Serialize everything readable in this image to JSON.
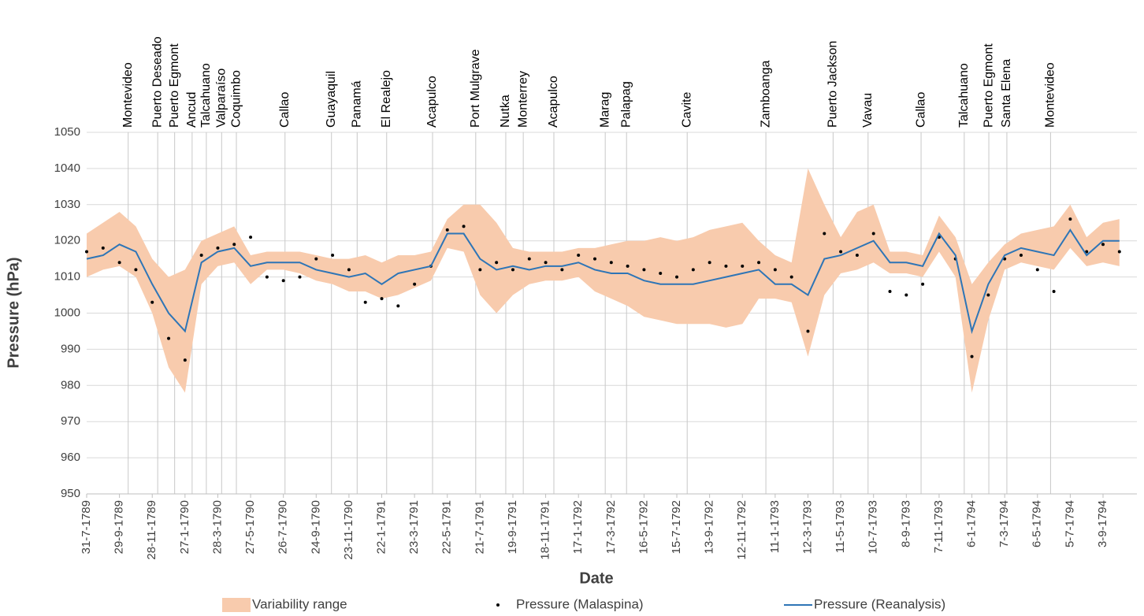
{
  "chart_data": {
    "type": "line",
    "y_label": "Pressure (hPa)",
    "x_label": "Date",
    "ylim": [
      950,
      1050
    ],
    "yticks": [
      950,
      960,
      970,
      980,
      990,
      1000,
      1010,
      1020,
      1030,
      1040,
      1050
    ],
    "grid": true,
    "legend": "bottom",
    "xlim": [
      "31-7-1789",
      "4-11-1794"
    ],
    "xticks": [
      "31-7-1789",
      "29-9-1789",
      "28-11-1789",
      "27-1-1790",
      "28-3-1790",
      "27-5-1790",
      "26-7-1790",
      "24-9-1790",
      "23-11-1790",
      "22-1-1791",
      "23-3-1791",
      "22-5-1791",
      "21-7-1791",
      "19-9-1791",
      "18-11-1791",
      "17-1-1792",
      "17-3-1792",
      "16-5-1792",
      "15-7-1792",
      "13-9-1792",
      "12-11-1792",
      "11-1-1793",
      "12-3-1793",
      "11-5-1793",
      "10-7-1793",
      "8-9-1793",
      "7-11-1793",
      "6-1-1794",
      "7-3-1794",
      "6-5-1794",
      "5-7-1794",
      "3-9-1794"
    ],
    "x": [
      "31-7-1789",
      "30-8-1789",
      "29-9-1789",
      "29-10-1789",
      "28-11-1789",
      "28-12-1789",
      "27-1-1790",
      "26-2-1790",
      "28-3-1790",
      "27-4-1790",
      "27-5-1790",
      "26-6-1790",
      "26-7-1790",
      "25-8-1790",
      "24-9-1790",
      "24-10-1790",
      "23-11-1790",
      "23-12-1790",
      "22-1-1791",
      "21-2-1791",
      "23-3-1791",
      "22-4-1791",
      "22-5-1791",
      "21-6-1791",
      "21-7-1791",
      "20-8-1791",
      "19-9-1791",
      "19-10-1791",
      "18-11-1791",
      "18-12-1791",
      "17-1-1792",
      "16-2-1792",
      "17-3-1792",
      "16-4-1792",
      "16-5-1792",
      "15-6-1792",
      "15-7-1792",
      "14-8-1792",
      "13-9-1792",
      "13-10-1792",
      "12-11-1792",
      "12-12-1792",
      "11-1-1793",
      "10-2-1793",
      "12-3-1793",
      "11-4-1793",
      "11-5-1793",
      "10-6-1793",
      "10-7-1793",
      "9-8-1793",
      "8-9-1793",
      "8-10-1793",
      "7-11-1793",
      "7-12-1793",
      "6-1-1794",
      "5-2-1794",
      "7-3-1794",
      "6-4-1794",
      "6-5-1794",
      "5-6-1794",
      "5-7-1794",
      "4-8-1794",
      "3-9-1794",
      "3-10-1794"
    ],
    "series": [
      {
        "name": "Variability range",
        "color": "#f8cbad",
        "type": "area",
        "low": [
          1010,
          1012,
          1013,
          1010,
          1000,
          985,
          978,
          1008,
          1013,
          1014,
          1008,
          1012,
          1012,
          1011,
          1009,
          1008,
          1006,
          1006,
          1004,
          1005,
          1007,
          1009,
          1018,
          1017,
          1005,
          1000,
          1005,
          1008,
          1009,
          1009,
          1010,
          1006,
          1004,
          1002,
          999,
          998,
          997,
          997,
          997,
          996,
          997,
          1004,
          1004,
          1003,
          988,
          1005,
          1011,
          1012,
          1014,
          1011,
          1011,
          1010,
          1017,
          1010,
          978,
          998,
          1012,
          1014,
          1013,
          1012,
          1018,
          1013,
          1014,
          1013
        ],
        "high": [
          1022,
          1025,
          1028,
          1024,
          1015,
          1010,
          1012,
          1020,
          1022,
          1024,
          1016,
          1017,
          1017,
          1017,
          1016,
          1015,
          1015,
          1016,
          1014,
          1016,
          1016,
          1017,
          1026,
          1030,
          1030,
          1025,
          1018,
          1017,
          1017,
          1017,
          1018,
          1018,
          1019,
          1020,
          1020,
          1021,
          1020,
          1021,
          1023,
          1024,
          1025,
          1020,
          1016,
          1014,
          1040,
          1030,
          1021,
          1028,
          1030,
          1017,
          1017,
          1016,
          1027,
          1021,
          1008,
          1014,
          1019,
          1022,
          1023,
          1024,
          1030,
          1021,
          1025,
          1026
        ]
      },
      {
        "name": "Pressure (Malaspina)",
        "color": "#000000",
        "type": "scatter",
        "values": [
          1017,
          1018,
          1014,
          1012,
          1003,
          993,
          987,
          1016,
          1018,
          1019,
          1021,
          1010,
          1009,
          1010,
          1015,
          1016,
          1012,
          1003,
          1004,
          1002,
          1008,
          1013,
          1023,
          1024,
          1012,
          1014,
          1012,
          1015,
          1014,
          1012,
          1016,
          1015,
          1014,
          1013,
          1012,
          1011,
          1010,
          1012,
          1014,
          1013,
          1013,
          1014,
          1012,
          1010,
          995,
          1022,
          1017,
          1016,
          1022,
          1006,
          1005,
          1008,
          1021,
          1015,
          988,
          1005,
          1015,
          1016,
          1012,
          1006,
          1026,
          1017,
          1019,
          1017
        ]
      },
      {
        "name": "Pressure (Reanalysis)",
        "color": "#2e75b6",
        "type": "line",
        "values": [
          1015,
          1016,
          1019,
          1017,
          1008,
          1000,
          995,
          1014,
          1017,
          1018,
          1013,
          1014,
          1014,
          1014,
          1012,
          1011,
          1010,
          1011,
          1008,
          1011,
          1012,
          1013,
          1022,
          1022,
          1015,
          1012,
          1013,
          1012,
          1013,
          1013,
          1014,
          1012,
          1011,
          1011,
          1009,
          1008,
          1008,
          1008,
          1009,
          1010,
          1011,
          1012,
          1008,
          1008,
          1005,
          1015,
          1016,
          1018,
          1020,
          1014,
          1014,
          1013,
          1022,
          1016,
          995,
          1008,
          1016,
          1018,
          1017,
          1016,
          1023,
          1016,
          1020,
          1020
        ]
      }
    ],
    "ports": [
      {
        "name": "Montevideo",
        "date": "15-10-1789"
      },
      {
        "name": "Puerto  Deseado",
        "date": "8-12-1789"
      },
      {
        "name": "Puerto  Egmont",
        "date": "8-1-1790"
      },
      {
        "name": "Ancud",
        "date": "9-2-1790"
      },
      {
        "name": "Talcahuano",
        "date": "7-3-1790"
      },
      {
        "name": "Valparaíso",
        "date": "4-4-1790"
      },
      {
        "name": "Coquimbo",
        "date": "1-5-1790"
      },
      {
        "name": "Callao",
        "date": "29-7-1790"
      },
      {
        "name": "Guayaquil",
        "date": "22-10-1790"
      },
      {
        "name": "Panamá",
        "date": "8-12-1790"
      },
      {
        "name": "El Realejo",
        "date": "31-1-1791"
      },
      {
        "name": "Acapulco",
        "date": "25-4-1791"
      },
      {
        "name": "Port Mulgrave",
        "date": "13-7-1791"
      },
      {
        "name": "Nutka",
        "date": "6-9-1791"
      },
      {
        "name": "Monterrey",
        "date": "8-10-1791"
      },
      {
        "name": "Acapulco",
        "date": "3-12-1791"
      },
      {
        "name": "Marag",
        "date": "6-3-1792"
      },
      {
        "name": "Palapag",
        "date": "14-4-1792"
      },
      {
        "name": "Cavite",
        "date": "3-8-1792"
      },
      {
        "name": "Zamboanga",
        "date": "25-12-1792"
      },
      {
        "name": "Puerto Jackson",
        "date": "27-4-1793"
      },
      {
        "name": "Vavau",
        "date": "30-6-1793"
      },
      {
        "name": "Callao",
        "date": "5-10-1793"
      },
      {
        "name": "Talcahuano",
        "date": "23-12-1793"
      },
      {
        "name": "Puerto  Egmont",
        "date": "6-2-1794"
      },
      {
        "name": "Santa Elena",
        "date": "11-3-1794"
      },
      {
        "name": "Montevideo",
        "date": "30-5-1794"
      }
    ]
  }
}
